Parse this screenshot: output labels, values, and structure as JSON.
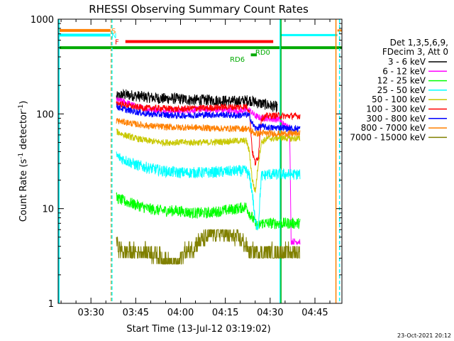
{
  "chart_data": {
    "type": "line",
    "title": "RHESSI Observing Summary Count Rates",
    "xlabel": "Start Time (13-Jul-12 03:19:02)",
    "ylabel_main": "Count Rate (s",
    "ylabel_sup1": "-1",
    "ylabel_mid": " detector",
    "ylabel_sup2": "-1",
    "ylabel_end": ")",
    "footer": "23-Oct-2021 20:12",
    "x_unit": "minutes after 03:19:02 UT",
    "xlim": [
      0,
      95
    ],
    "ylim": [
      1,
      1000
    ],
    "yscale": "log",
    "x_ticks": [
      {
        "label": "03:30",
        "value": 10.97
      },
      {
        "label": "03:45",
        "value": 25.97
      },
      {
        "label": "04:00",
        "value": 40.97
      },
      {
        "label": "04:15",
        "value": 55.97
      },
      {
        "label": "04:30",
        "value": 70.97
      },
      {
        "label": "04:45",
        "value": 85.97
      }
    ],
    "y_ticks": [
      {
        "label": "1",
        "value": 1
      },
      {
        "label": "10",
        "value": 10
      },
      {
        "label": "100",
        "value": 100
      },
      {
        "label": "1000",
        "value": 1000
      }
    ],
    "legend": {
      "position": "right",
      "header1": "Det 1,3,5,6,9,",
      "header2": "FDecim 3, Att 0"
    },
    "flags": [
      {
        "label": "S",
        "color": "#ff8000",
        "y": 760,
        "x_start": 0,
        "x_end": 17.5,
        "label_x": 17.8
      },
      {
        "label": "N",
        "color": "#00ffff",
        "y": 680,
        "x_start": 0,
        "x_end": 17.5,
        "label_x": 17.8
      },
      {
        "label": "F",
        "color": "#ff0000",
        "y": 580,
        "x_start": 22.5,
        "x_end": 72,
        "label_x": 19.0
      },
      {
        "label": "RD0",
        "color": "#00aa00",
        "y": 500,
        "x_start": 0,
        "x_end": 95,
        "label_x": 66.0
      },
      {
        "label": "RD6",
        "color": "#00aa00",
        "y": 420,
        "x_start": 64.5,
        "x_end": 66.5,
        "label_x": 57.5
      }
    ],
    "flag_stubs": [
      {
        "color": "#ff8000",
        "y": 760,
        "x_start": 93.5,
        "x_end": 95
      },
      {
        "color": "#00ffff",
        "y": 680,
        "x_start": 74.5,
        "x_end": 93.5
      }
    ],
    "vlines": [
      {
        "x": 17.8,
        "color": "#ff8000",
        "dashed": true
      },
      {
        "x": 18.0,
        "color": "#00ffff",
        "dashed": true
      },
      {
        "x": 74.3,
        "color": "#00ffff",
        "dashed": false
      },
      {
        "x": 74.6,
        "color": "#00aa00",
        "dashed": false
      },
      {
        "x": 93.0,
        "color": "#ff8000",
        "dashed": false
      },
      {
        "x": 94.2,
        "color": "#00ffff",
        "dashed": true
      }
    ],
    "series": [
      {
        "name": "3 - 6 keV",
        "color": "#000000",
        "x": [
          19.5,
          22,
          26,
          30,
          35,
          40,
          45,
          50,
          55,
          60,
          64,
          67,
          70,
          72,
          73.5
        ],
        "y": [
          150,
          160,
          155,
          150,
          145,
          145,
          140,
          140,
          138,
          135,
          140,
          130,
          125,
          120,
          118
        ]
      },
      {
        "name": "6 - 12 keV",
        "color": "#ff00ff",
        "x": [
          19.5,
          22,
          26,
          30,
          35,
          40,
          45,
          50,
          55,
          60,
          64,
          66,
          68,
          70,
          72,
          74,
          75,
          76,
          77,
          77.5,
          78,
          79,
          80,
          81
        ],
        "y": [
          140,
          135,
          120,
          112,
          110,
          108,
          110,
          112,
          110,
          108,
          110,
          95,
          90,
          90,
          88,
          88,
          80,
          75,
          75,
          72,
          4.5,
          4.5,
          4.5,
          4.5
        ]
      },
      {
        "name": "12 - 25 keV",
        "color": "#00ff00",
        "x": [
          19.5,
          22,
          26,
          30,
          35,
          40,
          45,
          50,
          55,
          60,
          63,
          64,
          65,
          66,
          67,
          68,
          69,
          70,
          72,
          74,
          75,
          77,
          80,
          81
        ],
        "y": [
          13,
          12,
          11,
          10,
          9.5,
          9.5,
          9,
          9,
          9.5,
          10,
          10.5,
          9,
          8,
          7,
          6.5,
          7,
          7,
          7,
          7,
          7,
          7,
          7,
          7,
          7
        ]
      },
      {
        "name": "25 - 50 keV",
        "color": "#00ffff",
        "x": [
          19.5,
          22,
          26,
          30,
          35,
          40,
          45,
          50,
          55,
          60,
          63,
          64,
          65,
          66,
          67,
          68,
          70,
          72,
          74,
          75,
          77,
          80,
          81
        ],
        "y": [
          36,
          33,
          29,
          27,
          25,
          24,
          24,
          24,
          24.5,
          25,
          25,
          22,
          15,
          7,
          6.5,
          22,
          23,
          23,
          23,
          23,
          23,
          23,
          23
        ]
      },
      {
        "name": "50 - 100 keV",
        "color": "#c8c800",
        "x": [
          19.5,
          22,
          26,
          30,
          35,
          40,
          45,
          50,
          55,
          60,
          63,
          64,
          65,
          66,
          67,
          68,
          70,
          72,
          74,
          75,
          77,
          80,
          81
        ],
        "y": [
          65,
          60,
          55,
          52,
          50,
          50,
          50,
          50,
          51,
          52,
          52,
          40,
          20,
          15,
          30,
          50,
          55,
          55,
          56,
          56,
          55,
          55,
          55
        ]
      },
      {
        "name": "100 - 300 keV",
        "color": "#ff0000",
        "x": [
          19.5,
          22,
          26,
          30,
          35,
          40,
          45,
          50,
          55,
          60,
          63,
          64,
          65,
          66,
          67,
          68,
          70,
          72,
          74,
          75,
          77,
          80,
          81
        ],
        "y": [
          130,
          125,
          118,
          115,
          115,
          112,
          115,
          115,
          118,
          118,
          120,
          110,
          40,
          30,
          35,
          90,
          95,
          96,
          96,
          95,
          95,
          95,
          95
        ]
      },
      {
        "name": "300 - 800 keV",
        "color": "#0000ff",
        "x": [
          19.5,
          22,
          26,
          30,
          35,
          40,
          45,
          50,
          55,
          60,
          63,
          64,
          65,
          66,
          67,
          68,
          70,
          72,
          74,
          75,
          77,
          80,
          81
        ],
        "y": [
          120,
          112,
          105,
          100,
          98,
          96,
          97,
          98,
          98,
          96,
          98,
          95,
          80,
          70,
          72,
          74,
          72,
          71,
          72,
          72,
          70,
          70,
          70
        ]
      },
      {
        "name": "800 - 7000 keV",
        "color": "#ff8000",
        "x": [
          19.5,
          22,
          26,
          30,
          35,
          40,
          45,
          50,
          55,
          60,
          63,
          64,
          65,
          66,
          67,
          68,
          70,
          72,
          74,
          75,
          77,
          80,
          81
        ],
        "y": [
          85,
          82,
          78,
          75,
          73,
          72,
          72,
          71,
          70,
          70,
          70,
          68,
          65,
          62,
          62,
          63,
          62,
          62,
          62,
          62,
          62,
          62,
          62
        ]
      },
      {
        "name": "7000 - 15000 keV",
        "color": "#808000",
        "x": [
          19.5,
          20,
          22,
          26,
          30,
          35,
          38,
          40,
          42,
          45,
          47,
          50,
          52,
          55,
          58,
          60,
          62,
          64,
          66,
          68,
          70,
          72,
          75,
          77,
          80,
          81
        ],
        "y": [
          5,
          4,
          3.5,
          3.5,
          3.5,
          3,
          2.6,
          2.6,
          3.5,
          3.8,
          4.5,
          5,
          5.5,
          5.5,
          5,
          5,
          4.5,
          3.5,
          3.5,
          3.5,
          3.5,
          3.5,
          3.5,
          3.5,
          3.5,
          3.5
        ]
      }
    ]
  }
}
